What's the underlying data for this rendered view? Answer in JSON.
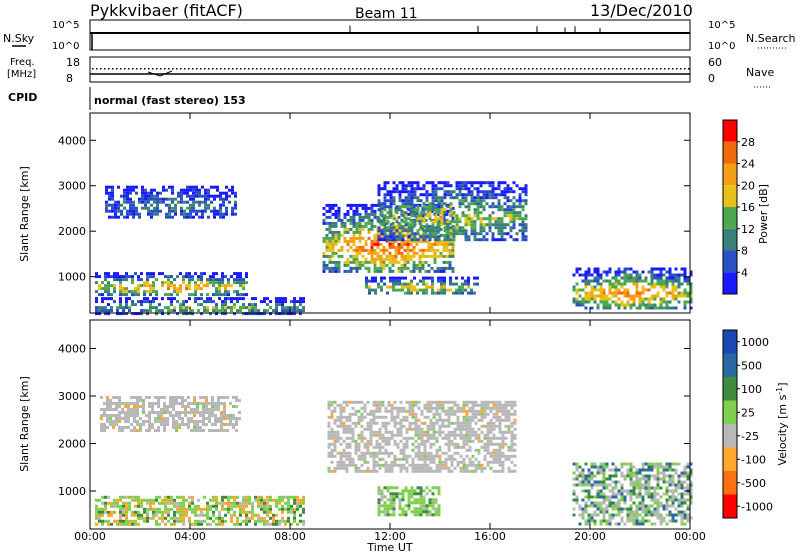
{
  "header": {
    "title": "Pykkvibaer (fitACF)",
    "beam": "Beam 11",
    "date": "13/Dec/2010"
  },
  "top_panels": {
    "nsky_label": "N.Sky",
    "nsky_ticks": [
      "10^5",
      "10^0"
    ],
    "nsearch_label": "N.Search",
    "nsearch_ticks": [
      "10^5",
      "10^0"
    ],
    "freq_label": "Freq.",
    "freq_unit": "[MHz]",
    "freq_ticks": [
      "18",
      "8"
    ],
    "nave_label": "Nave",
    "nave_ticks": [
      "60",
      "0"
    ],
    "cpid_label": "CPID",
    "cpid_text": "normal (fast stereo) 153"
  },
  "colors": {
    "power_scale": [
      "#1a1aff",
      "#2a50c8",
      "#3a7f7a",
      "#4fa84f",
      "#e6c21a",
      "#f5a014",
      "#f06a0e",
      "#ff0000"
    ],
    "velocity_scale": [
      "#1a48b4",
      "#2a6aa0",
      "#3f8a3f",
      "#7fd04f",
      "#b8b8b8",
      "#ffa82a",
      "#ff7010",
      "#ff0000"
    ]
  },
  "chart_data": [
    {
      "type": "heatmap",
      "name": "power",
      "ylabel": "Slant Range [km]",
      "yticks": [
        "1000",
        "2000",
        "3000",
        "4000"
      ],
      "ylim": [
        200,
        4600
      ],
      "xlim": [
        0,
        24
      ],
      "colorbar_label": "Power [dB]",
      "colorbar_ticks": [
        "4",
        "8",
        "12",
        "16",
        "20",
        "24",
        "28"
      ],
      "colorbar_range": [
        0,
        32
      ],
      "scatter_regions": [
        {
          "t0": 0.2,
          "t1": 6.2,
          "r0": 600,
          "r1": 1100,
          "peak": 24
        },
        {
          "t0": 0.6,
          "t1": 5.8,
          "r0": 2300,
          "r1": 3000,
          "peak": 10
        },
        {
          "t0": 0.2,
          "t1": 8.5,
          "r0": 200,
          "r1": 550,
          "peak": 16
        },
        {
          "t0": 9.3,
          "t1": 14.5,
          "r0": 1100,
          "r1": 2600,
          "peak": 28
        },
        {
          "t0": 11.5,
          "t1": 17.5,
          "r0": 1800,
          "r1": 3100,
          "peak": 18
        },
        {
          "t0": 11.0,
          "t1": 15.5,
          "r0": 650,
          "r1": 1000,
          "peak": 22
        },
        {
          "t0": 19.3,
          "t1": 24.0,
          "r0": 300,
          "r1": 1200,
          "peak": 26
        }
      ]
    },
    {
      "type": "heatmap",
      "name": "velocity",
      "ylabel": "Slant Range [km]",
      "yticks": [
        "1000",
        "2000",
        "3000",
        "4000"
      ],
      "ylim": [
        200,
        4600
      ],
      "xlim": [
        0,
        24
      ],
      "xlabel": "Time UT",
      "xticks": [
        "00:00",
        "04:00",
        "08:00",
        "12:00",
        "16:00",
        "20:00",
        "00:00"
      ],
      "colorbar_label": "Velocity [m s^-1]",
      "colorbar_ticks": [
        "1000",
        "500",
        "100",
        "25",
        "-25",
        "-100",
        "-500",
        "-1000"
      ],
      "scatter_regions": [
        {
          "t0": 0.4,
          "t1": 6.0,
          "r0": 2300,
          "r1": 3000,
          "vel": "ground"
        },
        {
          "t0": 0.2,
          "t1": 8.5,
          "r0": 300,
          "r1": 900,
          "vel": "low"
        },
        {
          "t0": 9.5,
          "t1": 17.0,
          "r0": 1400,
          "r1": 2900,
          "vel": "ground"
        },
        {
          "t0": 11.5,
          "t1": 14.0,
          "r0": 500,
          "r1": 1100,
          "vel": "toward"
        },
        {
          "t0": 19.3,
          "t1": 24.0,
          "r0": 300,
          "r1": 1600,
          "vel": "mixed"
        }
      ]
    }
  ]
}
